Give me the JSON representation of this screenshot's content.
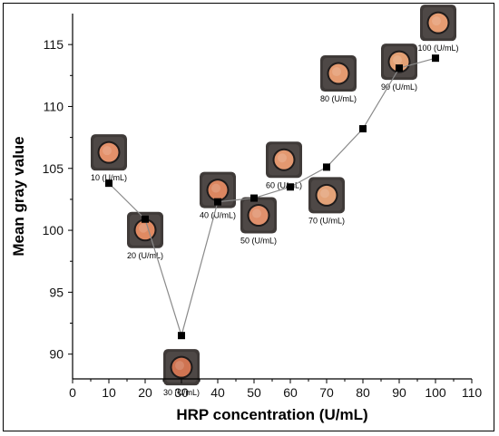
{
  "chart_data": {
    "type": "line",
    "title": "",
    "xlabel": "HRP concentration (U/mL)",
    "ylabel": "Mean gray value",
    "xlim": [
      0,
      110
    ],
    "ylim": [
      88,
      117.5
    ],
    "x_ticks": [
      0,
      10,
      20,
      30,
      40,
      50,
      60,
      70,
      80,
      90,
      100,
      110
    ],
    "y_ticks": [
      90,
      95,
      100,
      105,
      110,
      115
    ],
    "grid": false,
    "legend": "none",
    "marker": "square",
    "line_color": "#8a8a8a",
    "marker_color": "#000000",
    "series": [
      {
        "x": [
          10,
          20,
          30,
          40,
          50,
          60,
          70,
          80,
          90,
          100
        ],
        "y": [
          103.8,
          100.9,
          91.5,
          102.3,
          102.6,
          103.5,
          105.1,
          108.2,
          113.1,
          113.9
        ]
      }
    ],
    "sample_images": [
      {
        "label": "10 (U/mL)",
        "x": 10,
        "y": 103.8,
        "spot_color": "#e3906a"
      },
      {
        "label": "20 (U/mL)",
        "x": 20,
        "y": 100.9,
        "spot_color": "#e08a62"
      },
      {
        "label": "30 (U/mL)",
        "x": 30,
        "y": 91.5,
        "spot_color": "#cf7452"
      },
      {
        "label": "40 (U/mL)",
        "x": 40,
        "y": 102.3,
        "spot_color": "#dc8660"
      },
      {
        "label": "50 (U/mL)",
        "x": 50,
        "y": 102.6,
        "spot_color": "#e0906c"
      },
      {
        "label": "60 (U/mL)",
        "x": 60,
        "y": 103.5,
        "spot_color": "#e39870"
      },
      {
        "label": "70 (U/mL)",
        "x": 70,
        "y": 105.1,
        "spot_color": "#e3a278"
      },
      {
        "label": "80 (U/mL)",
        "x": 80,
        "y": 108.2,
        "spot_color": "#e49a70"
      },
      {
        "label": "90 (U/mL)",
        "x": 90,
        "y": 113.1,
        "spot_color": "#e3a074"
      },
      {
        "label": "100 (U/mL)",
        "x": 100,
        "y": 113.9,
        "spot_color": "#e69c72"
      }
    ]
  }
}
